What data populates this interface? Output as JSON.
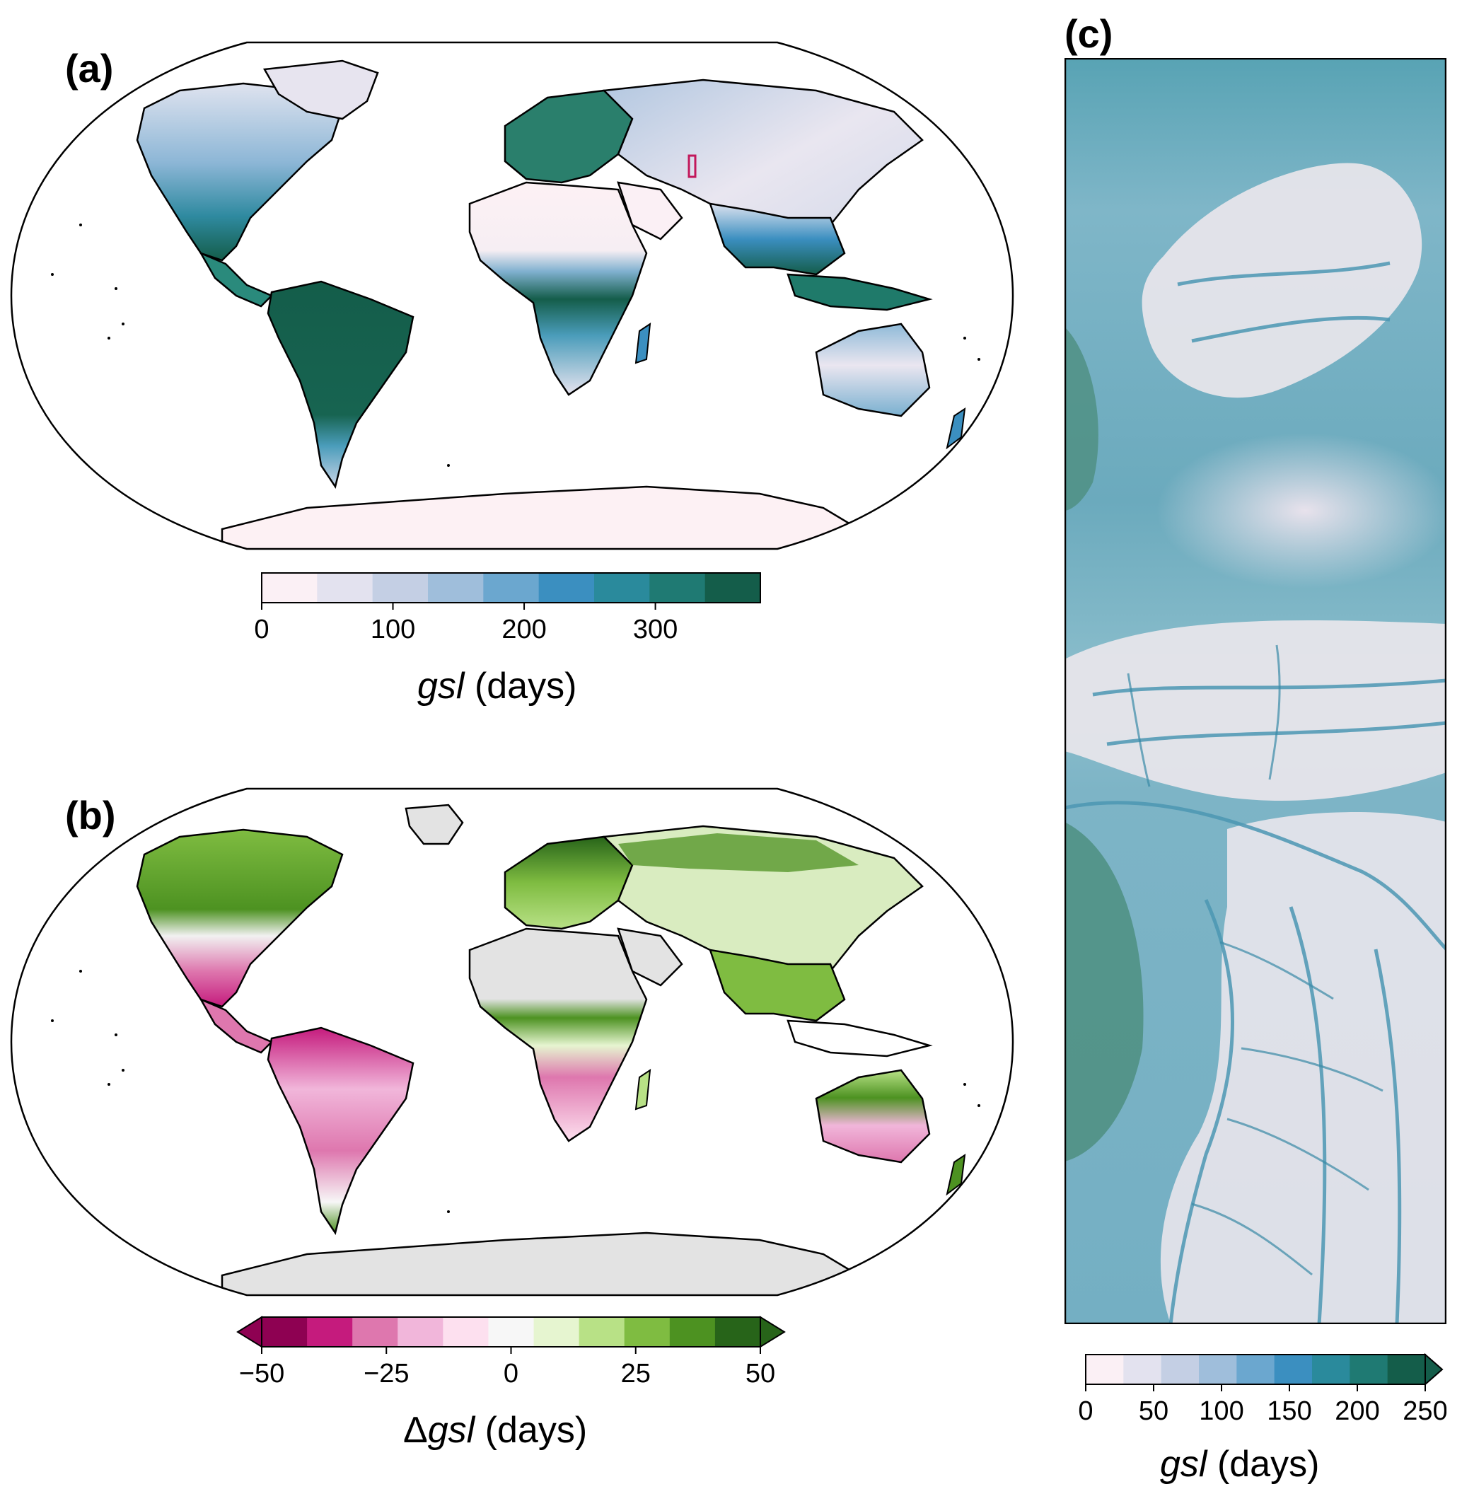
{
  "panels": {
    "a": {
      "label": "(a)"
    },
    "b": {
      "label": "(b)"
    },
    "c": {
      "label": "(c)"
    }
  },
  "colorbars": {
    "a": {
      "title_var": "gsl",
      "title_unit": "(days)",
      "ticks": [
        0,
        100,
        200,
        300
      ],
      "range": [
        0,
        380
      ],
      "palette": [
        "#fbf0f5",
        "#e3e2ef",
        "#c4cfe4",
        "#9fbedb",
        "#6ba7cf",
        "#3b8fc0",
        "#2a8a9c",
        "#1f7a73",
        "#145d4a"
      ],
      "extend": "none"
    },
    "b": {
      "title_prefix": "Δ",
      "title_var": "gsl",
      "title_unit": "(days)",
      "ticks": [
        -50,
        -25,
        0,
        25,
        50
      ],
      "tick_labels": [
        "−50",
        "−25",
        "0",
        "25",
        "50"
      ],
      "range": [
        -50,
        50
      ],
      "palette": [
        "#8e0152",
        "#c51b7d",
        "#de77ae",
        "#f1b6da",
        "#fde0ef",
        "#f7f7f7",
        "#e6f5d0",
        "#b8e186",
        "#7fbc41",
        "#4d9221",
        "#276419"
      ],
      "extend": "both"
    },
    "c": {
      "title_var": "gsl",
      "title_unit": "(days)",
      "ticks": [
        0,
        50,
        100,
        150,
        200,
        250
      ],
      "range": [
        0,
        250
      ],
      "palette": [
        "#fbf0f5",
        "#e3e2ef",
        "#c4cfe4",
        "#9fbedb",
        "#6ba7cf",
        "#3b8fc0",
        "#2a8a9c",
        "#1f7a73",
        "#145d4a"
      ],
      "extend": "max"
    }
  },
  "map_a": {
    "highlight_box_color": "#c2185b",
    "ocean_color": "#ffffff",
    "antarctica_color": "#fdf1f4"
  },
  "map_b": {
    "no_data_color": "#e3e3e3",
    "ocean_color": "#ffffff"
  }
}
